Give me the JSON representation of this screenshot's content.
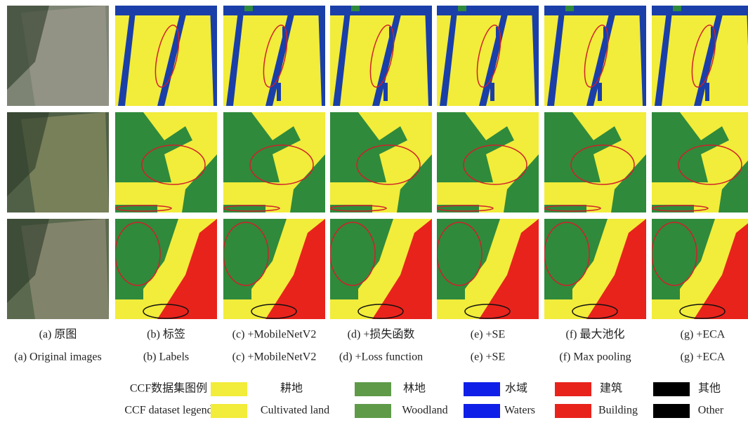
{
  "captions": {
    "zh": [
      "(a) 原图",
      "(b) 标签",
      "(c) +MobileNetV2",
      "(d) +损失函数",
      "(e) +SE",
      "(f) 最大池化",
      "(g) +ECA"
    ],
    "en": [
      "(a) Original images",
      "(b) Labels",
      "(c) +MobileNetV2",
      "(d) +Loss function",
      "(e) +SE",
      "(f) Max pooling",
      "(g) +ECA"
    ]
  },
  "legend": {
    "title_zh": "CCF数据集图例",
    "title_en": "CCF dataset legend",
    "items": [
      {
        "zh": "耕地",
        "en": "Cultivated land"
      },
      {
        "zh": "林地",
        "en": "Woodland"
      },
      {
        "zh": "水域",
        "en": "Waters"
      },
      {
        "zh": "建筑",
        "en": "Building"
      },
      {
        "zh": "其他",
        "en": "Other"
      }
    ]
  }
}
